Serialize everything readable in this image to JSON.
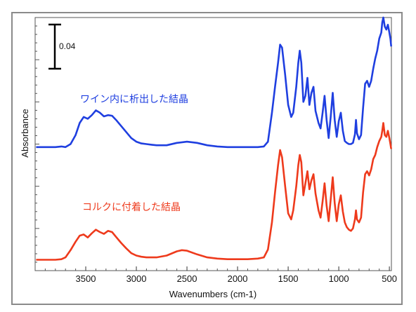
{
  "chart_data": {
    "type": "line",
    "xlabel": "Wavenumbers (cm-1)",
    "ylabel": "Absorbance",
    "x_reversed": true,
    "xlim": [
      4000,
      480
    ],
    "x_ticks": [
      3500,
      3000,
      2500,
      2000,
      1500,
      1000,
      500
    ],
    "x_tick_labels": [
      "3500",
      "3000",
      "2500",
      "2000",
      "1500",
      "1000",
      "500"
    ],
    "ylim": [
      0,
      0.42
    ],
    "y_tick_labels_shown": false,
    "scale_bar": {
      "value": 0.04,
      "label": "0.04"
    },
    "grid": false,
    "series": [
      {
        "name": "ワイン内に析出した結晶",
        "color": "#1f3fe0",
        "points": [
          [
            3990,
            0.205
          ],
          [
            3800,
            0.205
          ],
          [
            3740,
            0.206
          ],
          [
            3700,
            0.205
          ],
          [
            3650,
            0.21
          ],
          [
            3600,
            0.225
          ],
          [
            3560,
            0.245
          ],
          [
            3520,
            0.255
          ],
          [
            3480,
            0.252
          ],
          [
            3440,
            0.258
          ],
          [
            3400,
            0.266
          ],
          [
            3360,
            0.262
          ],
          [
            3320,
            0.256
          ],
          [
            3280,
            0.258
          ],
          [
            3240,
            0.257
          ],
          [
            3200,
            0.25
          ],
          [
            3150,
            0.24
          ],
          [
            3100,
            0.23
          ],
          [
            3050,
            0.22
          ],
          [
            3000,
            0.214
          ],
          [
            2950,
            0.211
          ],
          [
            2900,
            0.21
          ],
          [
            2850,
            0.209
          ],
          [
            2800,
            0.208
          ],
          [
            2700,
            0.208
          ],
          [
            2600,
            0.212
          ],
          [
            2500,
            0.214
          ],
          [
            2400,
            0.212
          ],
          [
            2300,
            0.208
          ],
          [
            2200,
            0.206
          ],
          [
            2100,
            0.205
          ],
          [
            2000,
            0.205
          ],
          [
            1900,
            0.205
          ],
          [
            1800,
            0.205
          ],
          [
            1740,
            0.206
          ],
          [
            1700,
            0.214
          ],
          [
            1660,
            0.262
          ],
          [
            1630,
            0.305
          ],
          [
            1600,
            0.345
          ],
          [
            1580,
            0.375
          ],
          [
            1560,
            0.37
          ],
          [
            1530,
            0.325
          ],
          [
            1500,
            0.275
          ],
          [
            1470,
            0.255
          ],
          [
            1450,
            0.262
          ],
          [
            1420,
            0.305
          ],
          [
            1400,
            0.345
          ],
          [
            1385,
            0.365
          ],
          [
            1370,
            0.345
          ],
          [
            1350,
            0.28
          ],
          [
            1330,
            0.29
          ],
          [
            1310,
            0.32
          ],
          [
            1290,
            0.275
          ],
          [
            1270,
            0.295
          ],
          [
            1250,
            0.305
          ],
          [
            1230,
            0.265
          ],
          [
            1200,
            0.245
          ],
          [
            1180,
            0.236
          ],
          [
            1160,
            0.262
          ],
          [
            1140,
            0.29
          ],
          [
            1120,
            0.25
          ],
          [
            1100,
            0.22
          ],
          [
            1080,
            0.255
          ],
          [
            1060,
            0.295
          ],
          [
            1040,
            0.25
          ],
          [
            1020,
            0.222
          ],
          [
            1000,
            0.248
          ],
          [
            980,
            0.262
          ],
          [
            960,
            0.232
          ],
          [
            940,
            0.215
          ],
          [
            920,
            0.212
          ],
          [
            900,
            0.21
          ],
          [
            880,
            0.21
          ],
          [
            860,
            0.212
          ],
          [
            840,
            0.226
          ],
          [
            830,
            0.25
          ],
          [
            820,
            0.228
          ],
          [
            800,
            0.218
          ],
          [
            780,
            0.225
          ],
          [
            760,
            0.27
          ],
          [
            740,
            0.31
          ],
          [
            720,
            0.315
          ],
          [
            700,
            0.305
          ],
          [
            680,
            0.315
          ],
          [
            660,
            0.335
          ],
          [
            640,
            0.352
          ],
          [
            620,
            0.365
          ],
          [
            600,
            0.385
          ],
          [
            580,
            0.395
          ],
          [
            570,
            0.412
          ],
          [
            560,
            0.42
          ],
          [
            545,
            0.405
          ],
          [
            530,
            0.4
          ],
          [
            515,
            0.408
          ],
          [
            500,
            0.395
          ],
          [
            490,
            0.385
          ],
          [
            482,
            0.372
          ]
        ]
      },
      {
        "name": "コルクに付着した結晶",
        "color": "#ee3a1c",
        "points": [
          [
            3990,
            0.018
          ],
          [
            3800,
            0.018
          ],
          [
            3740,
            0.019
          ],
          [
            3700,
            0.022
          ],
          [
            3650,
            0.034
          ],
          [
            3600,
            0.048
          ],
          [
            3560,
            0.058
          ],
          [
            3520,
            0.06
          ],
          [
            3480,
            0.055
          ],
          [
            3440,
            0.062
          ],
          [
            3400,
            0.068
          ],
          [
            3360,
            0.064
          ],
          [
            3320,
            0.061
          ],
          [
            3280,
            0.066
          ],
          [
            3240,
            0.064
          ],
          [
            3200,
            0.056
          ],
          [
            3150,
            0.046
          ],
          [
            3100,
            0.037
          ],
          [
            3050,
            0.029
          ],
          [
            3000,
            0.025
          ],
          [
            2950,
            0.023
          ],
          [
            2900,
            0.022
          ],
          [
            2850,
            0.022
          ],
          [
            2800,
            0.022
          ],
          [
            2700,
            0.025
          ],
          [
            2600,
            0.032
          ],
          [
            2550,
            0.034
          ],
          [
            2500,
            0.033
          ],
          [
            2400,
            0.027
          ],
          [
            2300,
            0.022
          ],
          [
            2200,
            0.02
          ],
          [
            2100,
            0.019
          ],
          [
            2000,
            0.019
          ],
          [
            1900,
            0.019
          ],
          [
            1800,
            0.02
          ],
          [
            1740,
            0.022
          ],
          [
            1700,
            0.035
          ],
          [
            1660,
            0.08
          ],
          [
            1630,
            0.13
          ],
          [
            1600,
            0.175
          ],
          [
            1580,
            0.2
          ],
          [
            1560,
            0.188
          ],
          [
            1530,
            0.14
          ],
          [
            1500,
            0.095
          ],
          [
            1470,
            0.085
          ],
          [
            1450,
            0.1
          ],
          [
            1420,
            0.14
          ],
          [
            1400,
            0.175
          ],
          [
            1385,
            0.192
          ],
          [
            1370,
            0.18
          ],
          [
            1350,
            0.125
          ],
          [
            1330,
            0.145
          ],
          [
            1310,
            0.165
          ],
          [
            1290,
            0.135
          ],
          [
            1270,
            0.15
          ],
          [
            1250,
            0.16
          ],
          [
            1230,
            0.128
          ],
          [
            1200,
            0.1
          ],
          [
            1180,
            0.088
          ],
          [
            1160,
            0.115
          ],
          [
            1140,
            0.145
          ],
          [
            1120,
            0.108
          ],
          [
            1100,
            0.082
          ],
          [
            1080,
            0.118
          ],
          [
            1060,
            0.155
          ],
          [
            1040,
            0.112
          ],
          [
            1020,
            0.082
          ],
          [
            1000,
            0.11
          ],
          [
            980,
            0.125
          ],
          [
            960,
            0.098
          ],
          [
            940,
            0.08
          ],
          [
            920,
            0.072
          ],
          [
            900,
            0.068
          ],
          [
            880,
            0.066
          ],
          [
            860,
            0.07
          ],
          [
            840,
            0.085
          ],
          [
            830,
            0.1
          ],
          [
            820,
            0.085
          ],
          [
            800,
            0.08
          ],
          [
            780,
            0.088
          ],
          [
            760,
            0.13
          ],
          [
            740,
            0.16
          ],
          [
            720,
            0.165
          ],
          [
            700,
            0.158
          ],
          [
            680,
            0.168
          ],
          [
            660,
            0.185
          ],
          [
            640,
            0.192
          ],
          [
            620,
            0.205
          ],
          [
            600,
            0.215
          ],
          [
            580,
            0.222
          ],
          [
            570,
            0.232
          ],
          [
            560,
            0.245
          ],
          [
            545,
            0.225
          ],
          [
            530,
            0.222
          ],
          [
            515,
            0.232
          ],
          [
            500,
            0.22
          ],
          [
            490,
            0.21
          ],
          [
            482,
            0.202
          ]
        ]
      }
    ]
  }
}
